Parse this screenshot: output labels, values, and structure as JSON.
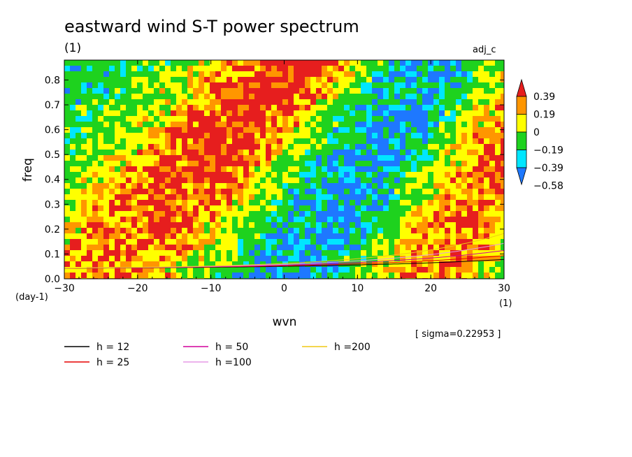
{
  "chart_data": {
    "type": "heatmap",
    "title": "eastward wind S-T power spectrum",
    "title_unit": "(1)",
    "corner_label": "adj_c",
    "xlabel": "wvn",
    "ylabel": "freq",
    "x_unit": "(1)",
    "y_unit": "(day-1)",
    "xlim": [
      -30,
      30
    ],
    "ylim": [
      0,
      0.88
    ],
    "xticks": [
      "−30",
      "−20",
      "−10",
      "0",
      "10",
      "20",
      "30"
    ],
    "yticks": [
      "0.0",
      "0.1",
      "0.2",
      "0.3",
      "0.4",
      "0.5",
      "0.6",
      "0.7",
      "0.8"
    ],
    "colorbar": {
      "labels": [
        "0.39",
        "0.19",
        "0",
        "−0.19",
        "−0.39",
        "−0.58"
      ],
      "levels": [
        -0.58,
        -0.39,
        -0.19,
        0,
        0.19,
        0.39
      ],
      "colors": [
        "#1e78ff",
        "#00e6ff",
        "#1ed21e",
        "#ffff00",
        "#ff9600",
        "#e61e1e"
      ]
    },
    "sigma_note": "[ sigma=0.22953 ]",
    "dispersion_curves": [
      {
        "name": "h = 12",
        "h": 12,
        "color": "#000000"
      },
      {
        "name": "h = 25",
        "h": 25,
        "color": "#e60000"
      },
      {
        "name": "h = 50",
        "h": 50,
        "color": "#d2009b"
      },
      {
        "name": "h =100",
        "h": 100,
        "color": "#e69ae6"
      },
      {
        "name": "h =200",
        "h": 200,
        "color": "#f0c814"
      }
    ],
    "field_description_values": {
      "background_level_range": [
        -0.19,
        0.19
      ],
      "seed": 7
    }
  }
}
